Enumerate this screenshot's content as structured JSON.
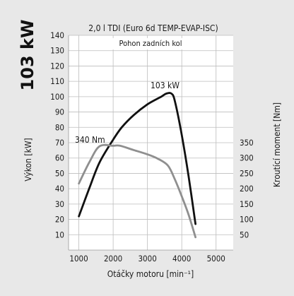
{
  "headline": "103 kW",
  "chart_data": {
    "type": "line",
    "title": "2,0 l TDI (Euro 6d TEMP-EVAP-ISC)",
    "subtitle": "Pohon zadních kol",
    "xlabel": "Otáčky motoru [min⁻¹]",
    "ylabel_left": "Výkon [kW]",
    "ylabel_right": "Kroutící moment [Nm]",
    "xlim": [
      700,
      5500
    ],
    "x_ticks": [
      1000,
      2000,
      3000,
      4000,
      5000
    ],
    "ylim_left": [
      0,
      140
    ],
    "y_ticks_left": [
      10,
      20,
      30,
      40,
      50,
      60,
      70,
      80,
      90,
      100,
      110,
      120,
      130,
      140
    ],
    "y_ticks_right": [
      50,
      100,
      150,
      200,
      250,
      300,
      350
    ],
    "right_axis_mapping": {
      "left_value_at": [
        10,
        70
      ],
      "right_value_at": [
        50,
        350
      ]
    },
    "grid": true,
    "series": [
      {
        "name": "103 kW",
        "axis": "left",
        "color": "#111111",
        "points": [
          [
            1000,
            22
          ],
          [
            1300,
            40
          ],
          [
            1600,
            57
          ],
          [
            2000,
            72
          ],
          [
            2250,
            80
          ],
          [
            2600,
            88
          ],
          [
            3000,
            95
          ],
          [
            3400,
            100
          ],
          [
            3550,
            102
          ],
          [
            3700,
            102
          ],
          [
            3800,
            97
          ],
          [
            4000,
            75
          ],
          [
            4200,
            48
          ],
          [
            4400,
            17
          ]
        ]
      },
      {
        "name": "340 Nm",
        "axis": "right",
        "color": "#8f8f8f",
        "points": [
          [
            1000,
            217
          ],
          [
            1300,
            285
          ],
          [
            1600,
            338
          ],
          [
            2000,
            340
          ],
          [
            2200,
            340
          ],
          [
            2600,
            326
          ],
          [
            3000,
            312
          ],
          [
            3300,
            298
          ],
          [
            3600,
            275
          ],
          [
            3800,
            230
          ],
          [
            4000,
            175
          ],
          [
            4200,
            115
          ],
          [
            4400,
            42
          ]
        ]
      }
    ]
  }
}
